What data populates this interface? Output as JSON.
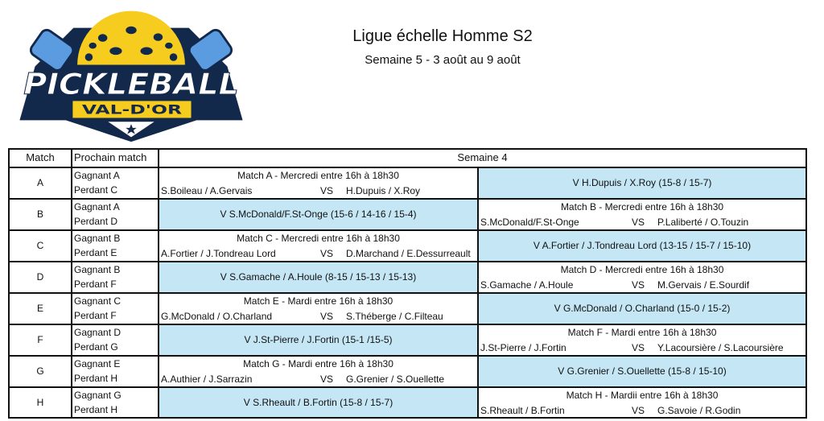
{
  "logo": {
    "text_main": "PICKLEBALL",
    "text_sub": "VAL-D'OR",
    "colors": {
      "navy": "#13294b",
      "yellow": "#f6cd1f",
      "blue": "#5b9be0"
    }
  },
  "header": {
    "title": "Ligue échelle Homme S2",
    "subtitle": "Semaine 5 - 3 août au 9 août"
  },
  "table": {
    "columns": {
      "match": "Match",
      "next": "Prochain match",
      "week": "Semaine 4"
    },
    "result_color": "#c5e6f4",
    "vs_label": "VS",
    "rows": [
      {
        "match": "A",
        "winner": "Gagnant A",
        "loser": "Perdant C",
        "schedule": {
          "side": "left",
          "title": "Match A - Mercredi entre 16h à 18h30",
          "team_a": "S.Boileau / A.Gervais",
          "team_b": "H.Dupuis / X.Roy"
        },
        "result": "V H.Dupuis / X.Roy (15-8 / 15-7)"
      },
      {
        "match": "B",
        "winner": "Gagnant A",
        "loser": "Perdant D",
        "schedule": {
          "side": "right",
          "title": "Match B - Mercredi entre 16h à 18h30",
          "team_a": "S.McDonald/F.St-Onge",
          "team_b": "P.Laliberté / O.Touzin"
        },
        "result": "V S.McDonald/F.St-Onge (15-6 / 14-16 / 15-4)"
      },
      {
        "match": "C",
        "winner": "Gagnant B",
        "loser": "Perdant E",
        "schedule": {
          "side": "left",
          "title": "Match C - Mercredi entre 16h à 18h30",
          "team_a": "A.Fortier / J.Tondreau Lord",
          "team_b": "D.Marchand / E.Dessurreault"
        },
        "result": "V A.Fortier / J.Tondreau Lord (13-15 / 15-7 / 15-10)"
      },
      {
        "match": "D",
        "winner": "Gagnant B",
        "loser": "Perdant F",
        "schedule": {
          "side": "right",
          "title": "Match D - Mercredi entre 16h à 18h30",
          "team_a": "S.Gamache / A.Houle",
          "team_b": "M.Gervais / E.Sourdif"
        },
        "result": "V S.Gamache / A.Houle (8-15 / 15-13 / 15-13)"
      },
      {
        "match": "E",
        "winner": "Gagnant C",
        "loser": "Perdant F",
        "schedule": {
          "side": "left",
          "title": "Match E - Mardi entre 16h à 18h30",
          "team_a": "G.McDonald / O.Charland",
          "team_b": "S.Théberge / C.Filteau"
        },
        "result": "V G.McDonald / O.Charland (15-0 / 15-2)"
      },
      {
        "match": "F",
        "winner": "Gagnant D",
        "loser": "Perdant G",
        "schedule": {
          "side": "right",
          "title": "Match F - Mardi entre 16h à 18h30",
          "team_a": "J.St-Pierre / J.Fortin",
          "team_b": "Y.Lacoursière / S.Lacoursière"
        },
        "result": "V J.St-Pierre / J.Fortin (15-1 /15-5)"
      },
      {
        "match": "G",
        "winner": "Gagnant E",
        "loser": "Perdant H",
        "schedule": {
          "side": "left",
          "title": "Match G - Mardi entre 16h à 18h30",
          "team_a": "A.Authier / J.Sarrazin",
          "team_b": "G.Grenier / S.Ouellette"
        },
        "result": "V G.Grenier / S.Ouellette (15-8 / 15-10)"
      },
      {
        "match": "H",
        "winner": "Gagnant G",
        "loser": "Perdant H",
        "schedule": {
          "side": "right",
          "title": "Match H - Mardii entre 16h à 18h30",
          "team_a": "S.Rheault / B.Fortin",
          "team_b": "G.Savoie / R.Godin"
        },
        "result": "V S.Rheault / B.Fortin (15-8 / 15-7)"
      }
    ]
  }
}
